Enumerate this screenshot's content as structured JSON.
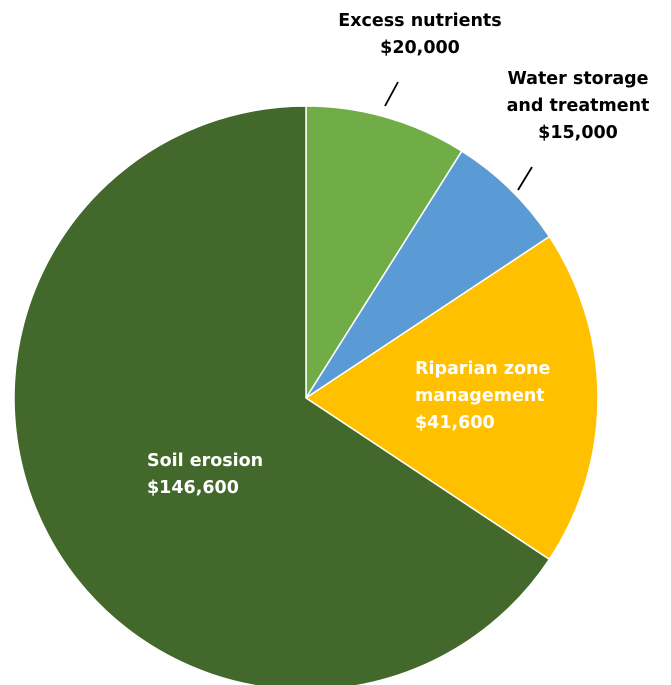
{
  "chart_data": {
    "type": "pie",
    "title": "",
    "slices": [
      {
        "label_lines": [
          "Excess nutrients"
        ],
        "value_text": "$20,000",
        "value": 20000,
        "color": "#70ad47"
      },
      {
        "label_lines": [
          "Water storage",
          "and treatment"
        ],
        "value_text": "$15,000",
        "value": 15000,
        "color": "#5b9bd5"
      },
      {
        "label_lines": [
          "Riparian zone",
          "management"
        ],
        "value_text": "$41,600",
        "value": 41600,
        "color": "#ffc000"
      },
      {
        "label_lines": [
          "Soil erosion"
        ],
        "value_text": "$146,600",
        "value": 146600,
        "color": "#43682b"
      }
    ],
    "start": "12 o'clock",
    "direction": "clockwise",
    "legend": "none"
  }
}
